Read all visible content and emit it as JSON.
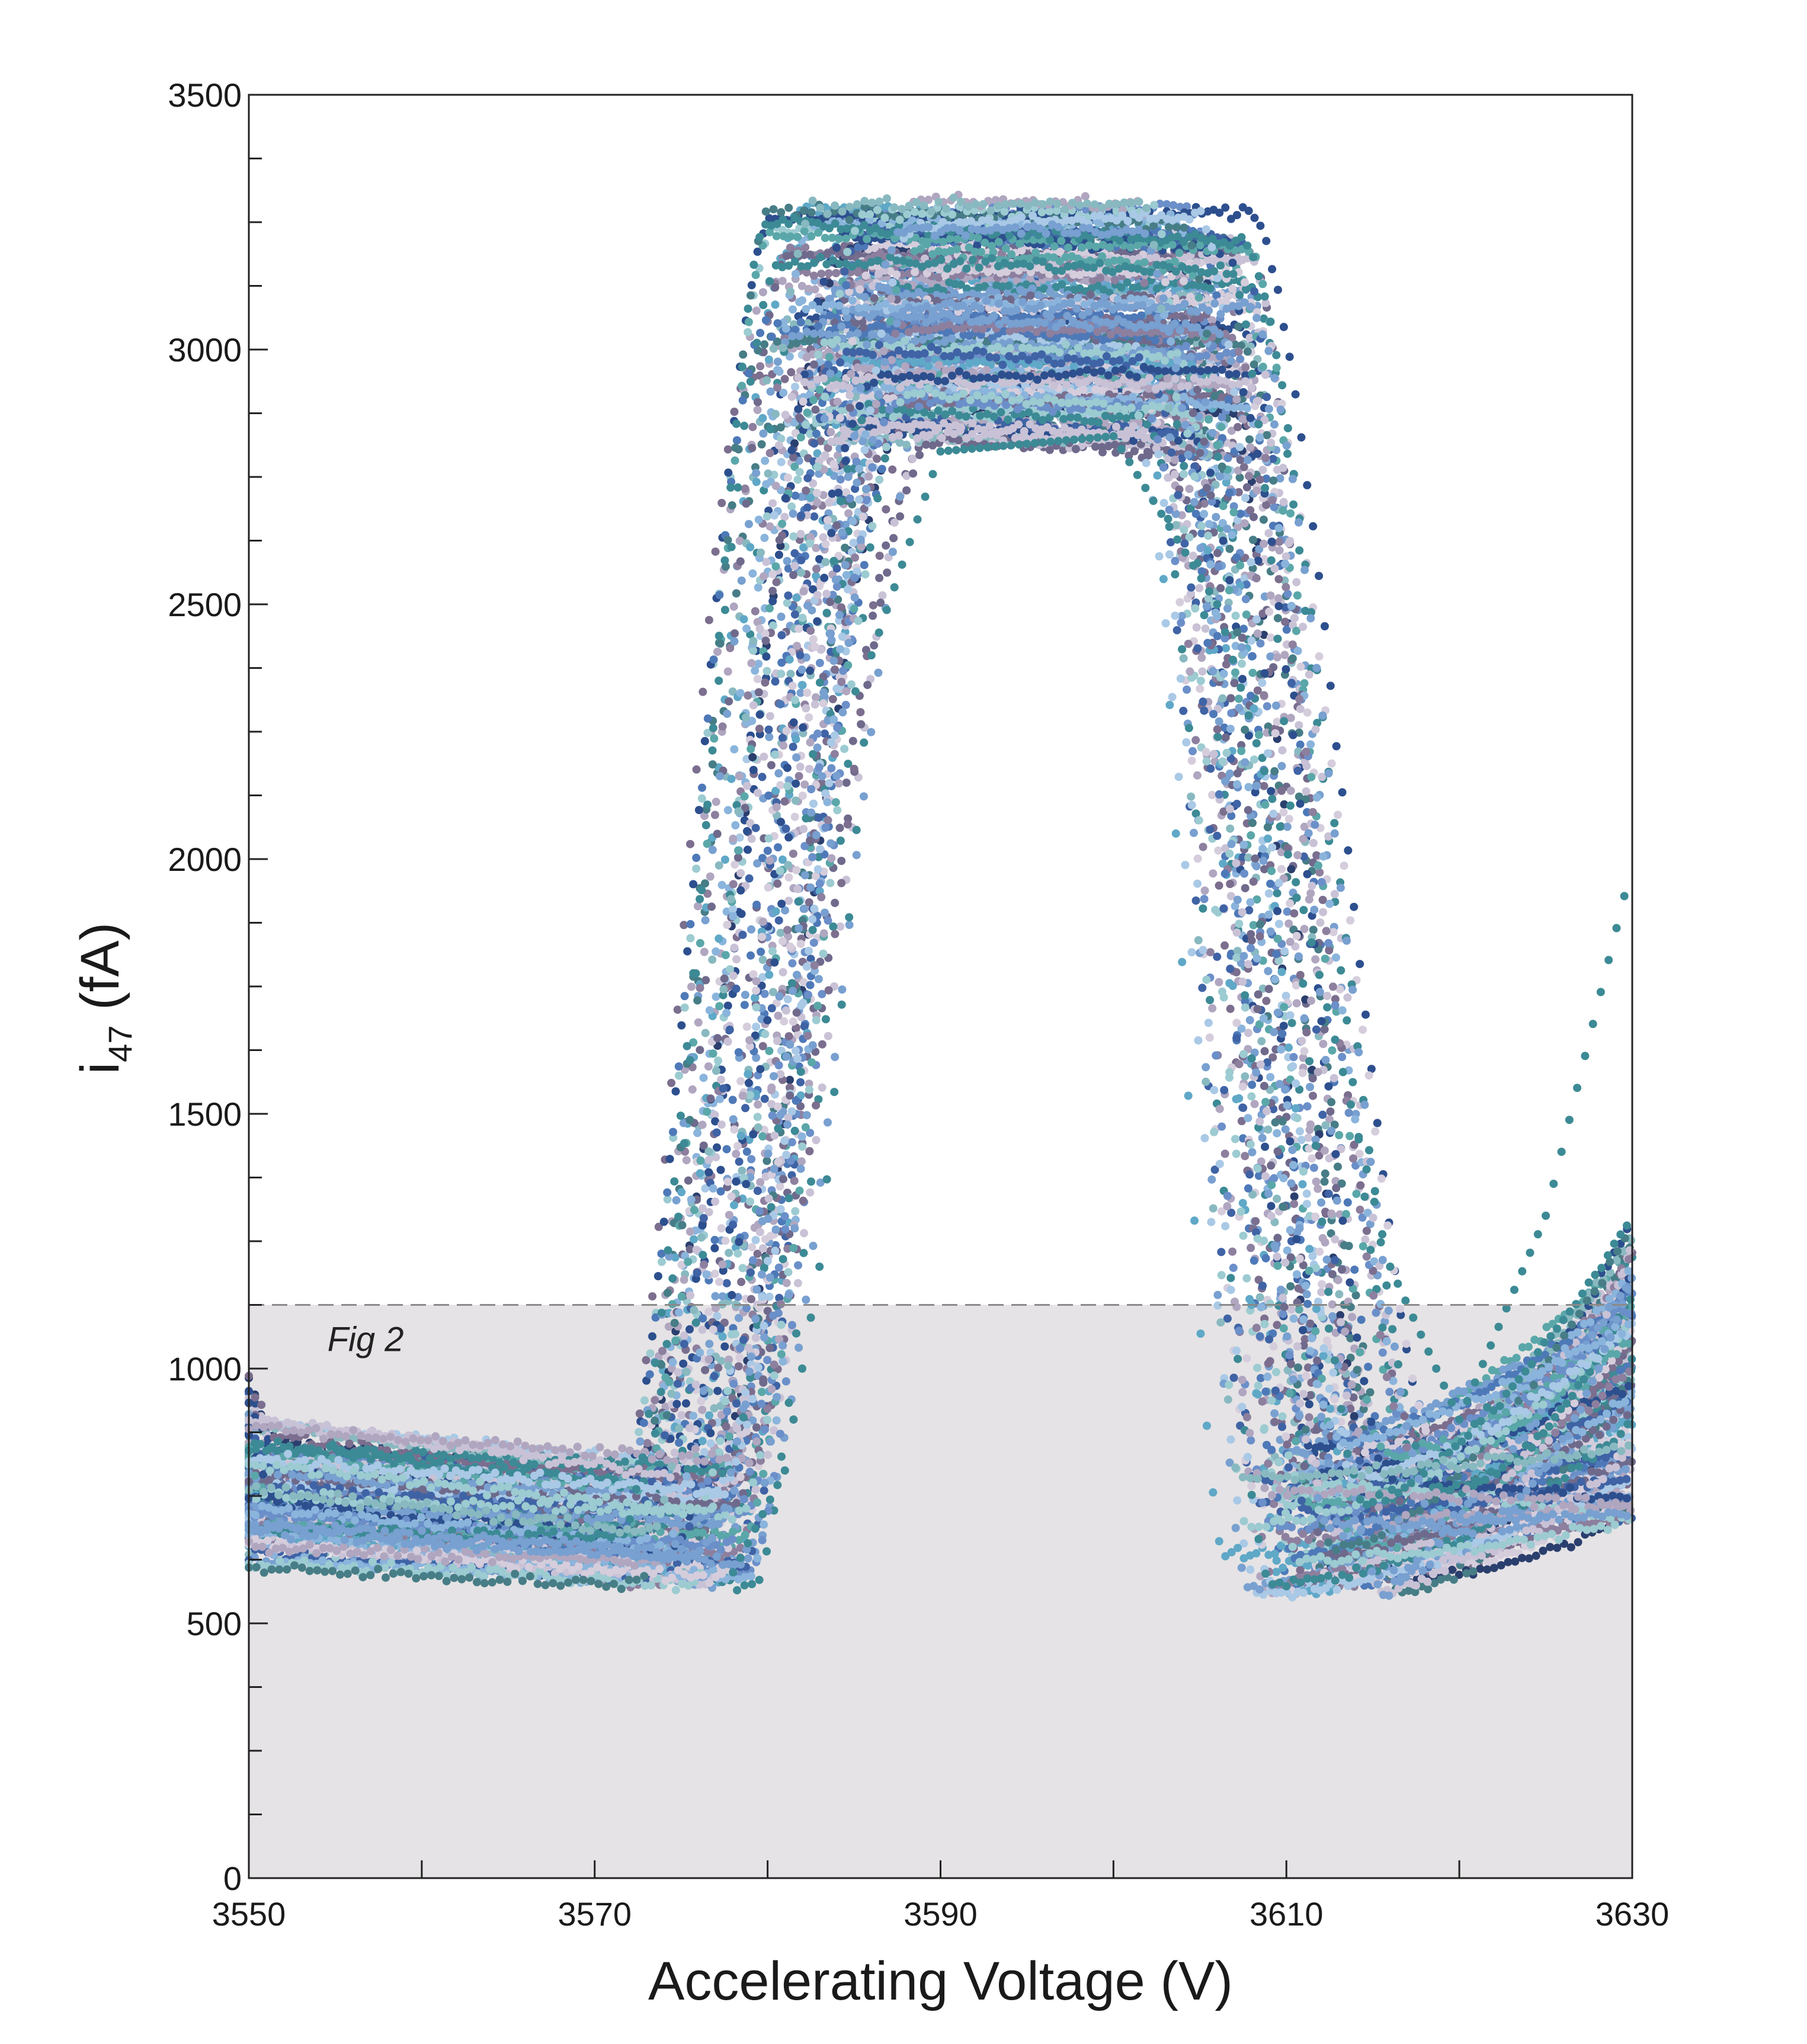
{
  "chart_data": {
    "type": "scatter",
    "xlabel": "Accelerating Voltage (V)",
    "ylabel": {
      "main": "i",
      "sub": "47",
      "unit": " (fA)"
    },
    "xlim": [
      3550,
      3630
    ],
    "ylim": [
      0,
      3500
    ],
    "x_ticks": [
      "3550",
      "3570",
      "3590",
      "3610",
      "3630"
    ],
    "y_ticks": [
      "0",
      "500",
      "1000",
      "1500",
      "2000",
      "2500",
      "3000",
      "3500"
    ],
    "x_tick_values": [
      3550,
      3570,
      3590,
      3610,
      3630
    ],
    "y_tick_values": [
      0,
      500,
      1000,
      1500,
      2000,
      2500,
      3000,
      3500
    ],
    "x_minor_step": 10,
    "y_minor_step": 125,
    "grid": false,
    "threshold": {
      "y": 1125,
      "style": "dashed",
      "shaded_below": true,
      "shade_color": "#e5e3e5"
    },
    "annotation": {
      "text": "Fig 2",
      "x": 3553,
      "y": 1060
    },
    "series_description": "many overlapping peak scans (~120) of i47 vs accelerating voltage",
    "series_count": 120,
    "typical_profile": {
      "baseline_left": [
        [
          3550,
          800
        ],
        [
          3560,
          770
        ],
        [
          3570,
          740
        ],
        [
          3576,
          730
        ]
      ],
      "rise": [
        [
          3576,
          730
        ],
        [
          3580,
          1400
        ],
        [
          3584,
          2400
        ],
        [
          3587,
          3000
        ]
      ],
      "plateau": [
        [
          3587,
          3050
        ],
        [
          3595,
          3050
        ],
        [
          3603,
          3050
        ]
      ],
      "fall": [
        [
          3603,
          3050
        ],
        [
          3606,
          2400
        ],
        [
          3609,
          1500
        ],
        [
          3612,
          900
        ]
      ],
      "baseline_right": [
        [
          3612,
          900
        ],
        [
          3616,
          780
        ],
        [
          3622,
          790
        ],
        [
          3630,
          900
        ]
      ]
    },
    "outlier_series": {
      "points": [
        [
          3578,
          600
        ],
        [
          3581,
          800
        ],
        [
          3583,
          1200
        ],
        [
          3586,
          2400
        ],
        [
          3590,
          2800
        ],
        [
          3600,
          2830
        ],
        [
          3606,
          2500
        ],
        [
          3611,
          1900
        ],
        [
          3616,
          1200
        ],
        [
          3620,
          900
        ],
        [
          3625,
          1300
        ],
        [
          3630,
          1990
        ]
      ]
    },
    "palette": [
      "#2d4f8e",
      "#4e79b8",
      "#6b8fc9",
      "#8ab4dc",
      "#a9c9e6",
      "#5fa8c7",
      "#3c8a95",
      "#5aa7a9",
      "#89b9c0",
      "#6f6a8c",
      "#8d7f9e",
      "#b0a6c0",
      "#c9c2d6",
      "#d5cddc",
      "#2b3f6e",
      "#3f63a5",
      "#78a0d0",
      "#477d86",
      "#9ccbd1",
      "#7b6e8e"
    ]
  }
}
